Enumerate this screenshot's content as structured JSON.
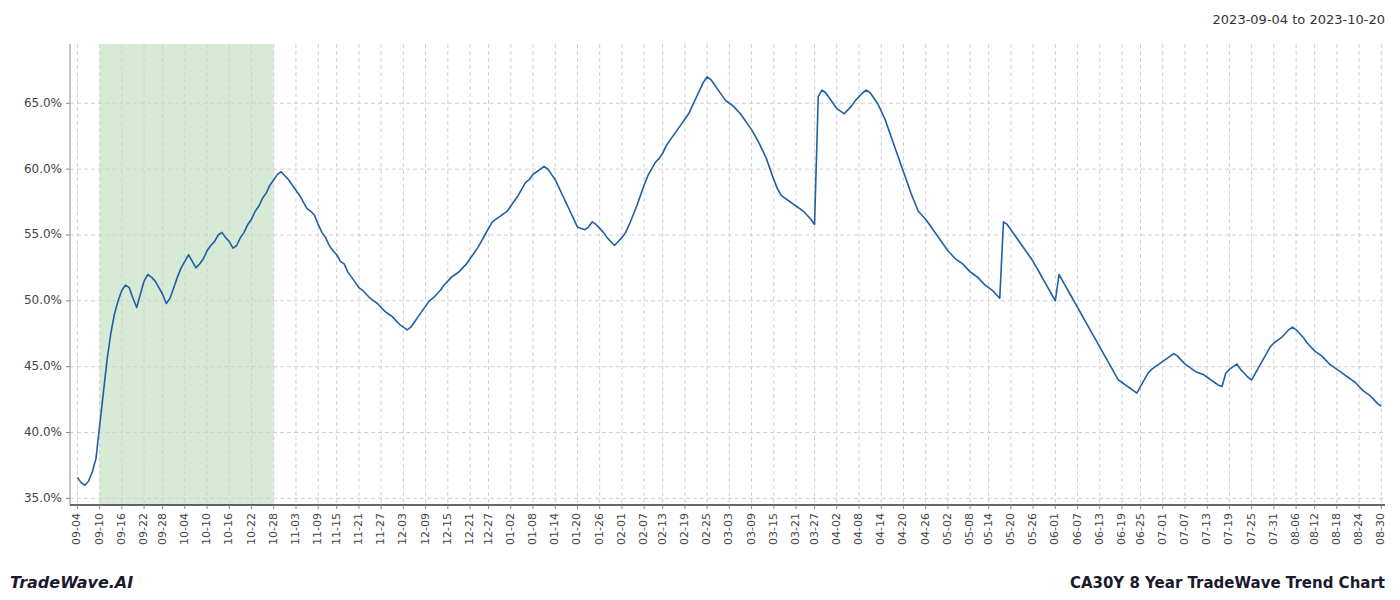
{
  "chart_data": {
    "type": "line",
    "title": "CA30Y 8 Year TradeWave Trend Chart",
    "subtitle": "2023-09-04 to 2023-10-20",
    "annotations": [
      "TradeWave.AI"
    ],
    "color": "#1f5fa6",
    "grid": true,
    "highlight": {
      "start": "09-10",
      "end": "10-28",
      "color": "#d6ead6"
    },
    "ylim": [
      0.345,
      0.695
    ],
    "yticks": [
      {
        "value": 0.35,
        "label": "35.0%"
      },
      {
        "value": 0.4,
        "label": "40.0%"
      },
      {
        "value": 0.45,
        "label": "45.0%"
      },
      {
        "value": 0.5,
        "label": "50.0%"
      },
      {
        "value": 0.55,
        "label": "55.0%"
      },
      {
        "value": 0.6,
        "label": "60.0%"
      },
      {
        "value": 0.65,
        "label": "65.0%"
      }
    ],
    "categories": [
      "09-04",
      null,
      null,
      null,
      null,
      null,
      "09-10",
      null,
      null,
      null,
      null,
      null,
      "09-16",
      null,
      null,
      null,
      null,
      null,
      "09-22",
      null,
      null,
      null,
      null,
      "09-28",
      null,
      null,
      null,
      null,
      null,
      "10-04",
      null,
      null,
      null,
      null,
      null,
      "10-10",
      null,
      null,
      null,
      null,
      null,
      "10-16",
      null,
      null,
      null,
      null,
      null,
      "10-22",
      null,
      null,
      null,
      null,
      null,
      "10-28",
      null,
      null,
      null,
      null,
      null,
      "11-03",
      null,
      null,
      null,
      null,
      null,
      "11-09",
      null,
      null,
      null,
      null,
      "11-15",
      null,
      null,
      null,
      null,
      null,
      "11-21",
      null,
      null,
      null,
      null,
      null,
      "11-27",
      null,
      null,
      null,
      null,
      null,
      "12-03",
      null,
      null,
      null,
      null,
      null,
      "12-09",
      null,
      null,
      null,
      null,
      null,
      "12-15",
      null,
      null,
      null,
      null,
      null,
      "12-21",
      null,
      null,
      null,
      null,
      "12-27",
      null,
      null,
      null,
      null,
      null,
      "01-02",
      null,
      null,
      null,
      null,
      null,
      "01-08",
      null,
      null,
      null,
      null,
      null,
      "01-14",
      null,
      null,
      null,
      null,
      null,
      "01-20",
      null,
      null,
      null,
      null,
      null,
      "01-26",
      null,
      null,
      null,
      null,
      null,
      "02-01",
      null,
      null,
      null,
      null,
      null,
      "02-07",
      null,
      null,
      null,
      null,
      "02-13",
      null,
      null,
      null,
      null,
      null,
      "02-19",
      null,
      null,
      null,
      null,
      null,
      "02-25",
      null,
      null,
      null,
      null,
      null,
      "03-03",
      null,
      null,
      null,
      null,
      null,
      "03-09",
      null,
      null,
      null,
      null,
      null,
      "03-15",
      null,
      null,
      null,
      null,
      null,
      "03-21",
      null,
      null,
      null,
      null,
      "03-27",
      null,
      null,
      null,
      null,
      null,
      "04-02",
      null,
      null,
      null,
      null,
      null,
      "04-08",
      null,
      null,
      null,
      null,
      null,
      "04-14",
      null,
      null,
      null,
      null,
      null,
      "04-20",
      null,
      null,
      null,
      null,
      null,
      "04-26",
      null,
      null,
      null,
      null,
      null,
      "05-02",
      null,
      null,
      null,
      null,
      null,
      "05-08",
      null,
      null,
      null,
      null,
      "05-14",
      null,
      null,
      null,
      null,
      null,
      "05-20",
      null,
      null,
      null,
      null,
      null,
      "05-26",
      null,
      null,
      null,
      null,
      null,
      "06-01",
      null,
      null,
      null,
      null,
      null,
      "06-07",
      null,
      null,
      null,
      null,
      null,
      "06-13",
      null,
      null,
      null,
      null,
      null,
      "06-19",
      null,
      null,
      null,
      null,
      "06-25",
      null,
      null,
      null,
      null,
      null,
      "07-01",
      null,
      null,
      null,
      null,
      null,
      "07-07",
      null,
      null,
      null,
      null,
      null,
      "07-13",
      null,
      null,
      null,
      null,
      null,
      "07-19",
      null,
      null,
      null,
      null,
      null,
      "07-25",
      null,
      null,
      null,
      null,
      null,
      "07-31",
      null,
      null,
      null,
      null,
      null,
      "08-06",
      null,
      null,
      null,
      null,
      "08-12",
      null,
      null,
      null,
      null,
      null,
      "08-18",
      null,
      null,
      null,
      null,
      null,
      "08-24",
      null,
      null,
      null,
      null,
      null,
      "08-30"
    ],
    "values": [
      0.366,
      0.362,
      0.36,
      0.363,
      0.37,
      0.38,
      0.405,
      0.43,
      0.455,
      0.475,
      0.49,
      0.5,
      0.508,
      0.512,
      0.51,
      0.502,
      0.495,
      0.505,
      0.515,
      0.52,
      0.518,
      0.515,
      0.51,
      0.505,
      0.498,
      0.502,
      0.51,
      0.518,
      0.525,
      0.53,
      0.535,
      0.53,
      0.525,
      0.528,
      0.532,
      0.538,
      0.542,
      0.545,
      0.55,
      0.552,
      0.548,
      0.545,
      0.54,
      0.542,
      0.548,
      0.552,
      0.558,
      0.562,
      0.568,
      0.572,
      0.578,
      0.582,
      0.588,
      0.592,
      0.596,
      0.598,
      0.595,
      0.592,
      0.588,
      0.584,
      0.58,
      0.575,
      0.57,
      0.568,
      0.565,
      0.558,
      0.552,
      0.548,
      0.542,
      0.538,
      0.535,
      0.53,
      0.528,
      0.522,
      0.518,
      0.514,
      0.51,
      0.508,
      0.505,
      0.502,
      0.5,
      0.498,
      0.495,
      0.492,
      0.49,
      0.488,
      0.485,
      0.482,
      0.48,
      0.478,
      0.48,
      0.484,
      0.488,
      0.492,
      0.496,
      0.5,
      0.502,
      0.505,
      0.508,
      0.512,
      0.515,
      0.518,
      0.52,
      0.522,
      0.525,
      0.528,
      0.532,
      0.536,
      0.54,
      0.545,
      0.55,
      0.555,
      0.56,
      0.562,
      0.564,
      0.566,
      0.568,
      0.572,
      0.576,
      0.58,
      0.585,
      0.59,
      0.592,
      0.596,
      0.598,
      0.6,
      0.602,
      0.6,
      0.596,
      0.592,
      0.586,
      0.58,
      0.574,
      0.568,
      0.562,
      0.556,
      0.555,
      0.554,
      0.556,
      0.56,
      0.558,
      0.555,
      0.552,
      0.548,
      0.545,
      0.542,
      0.545,
      0.548,
      0.552,
      0.558,
      0.565,
      0.572,
      0.58,
      0.588,
      0.595,
      0.6,
      0.605,
      0.608,
      0.612,
      0.618,
      0.622,
      0.626,
      0.63,
      0.634,
      0.638,
      0.642,
      0.648,
      0.654,
      0.66,
      0.666,
      0.67,
      0.668,
      0.664,
      0.66,
      0.656,
      0.652,
      0.65,
      0.648,
      0.645,
      0.642,
      0.638,
      0.634,
      0.63,
      0.625,
      0.62,
      0.614,
      0.608,
      0.6,
      0.592,
      0.585,
      0.58,
      0.578,
      0.576,
      0.574,
      0.572,
      0.57,
      0.568,
      0.565,
      0.562,
      0.558,
      0.655,
      0.66,
      0.658,
      0.654,
      0.65,
      0.646,
      0.644,
      0.642,
      0.645,
      0.648,
      0.652,
      0.655,
      0.658,
      0.66,
      0.658,
      0.654,
      0.65,
      0.644,
      0.638,
      0.63,
      0.622,
      0.614,
      0.606,
      0.598,
      0.59,
      0.582,
      0.575,
      0.568,
      0.565,
      0.562,
      0.558,
      0.554,
      0.55,
      0.546,
      0.542,
      0.538,
      0.535,
      0.532,
      0.53,
      0.528,
      0.525,
      0.522,
      0.52,
      0.518,
      0.515,
      0.512,
      0.51,
      0.508,
      0.505,
      0.502,
      0.56,
      0.558,
      0.554,
      0.55,
      0.546,
      0.542,
      0.538,
      0.534,
      0.53,
      0.525,
      0.52,
      0.515,
      0.51,
      0.505,
      0.5,
      0.52,
      0.515,
      0.51,
      0.505,
      0.5,
      0.495,
      0.49,
      0.485,
      0.48,
      0.475,
      0.47,
      0.465,
      0.46,
      0.455,
      0.45,
      0.445,
      0.44,
      0.438,
      0.436,
      0.434,
      0.432,
      0.43,
      0.435,
      0.44,
      0.445,
      0.448,
      0.45,
      0.452,
      0.454,
      0.456,
      0.458,
      0.46,
      0.458,
      0.455,
      0.452,
      0.45,
      0.448,
      0.446,
      0.445,
      0.444,
      0.442,
      0.44,
      0.438,
      0.436,
      0.435,
      0.445,
      0.448,
      0.45,
      0.452,
      0.448,
      0.445,
      0.442,
      0.44,
      0.445,
      0.45,
      0.455,
      0.46,
      0.465,
      0.468,
      0.47,
      0.472,
      0.475,
      0.478,
      0.48,
      0.478,
      0.475,
      0.472,
      0.468,
      0.465,
      0.462,
      0.46,
      0.458,
      0.455,
      0.452,
      0.45,
      0.448,
      0.446,
      0.444,
      0.442,
      0.44,
      0.438,
      0.435,
      0.432,
      0.43,
      0.428,
      0.425,
      0.422,
      0.42
    ]
  }
}
